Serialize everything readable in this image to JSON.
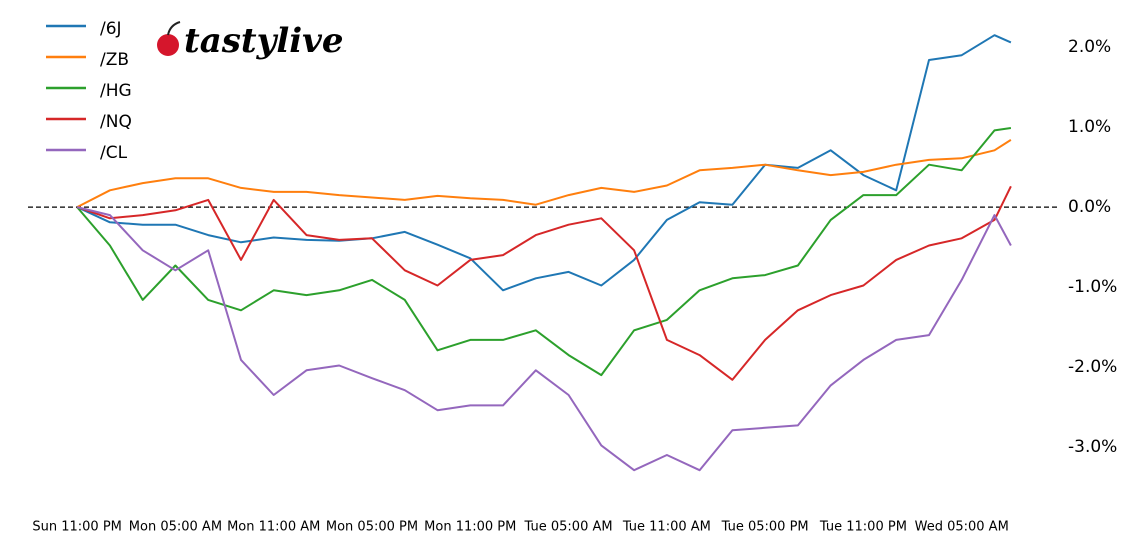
{
  "chart_data": {
    "type": "line",
    "logo": "tastylive",
    "x": [
      0,
      2,
      4,
      6,
      8,
      10,
      12,
      14,
      16,
      18,
      20,
      22,
      24,
      26,
      28,
      30,
      32,
      34,
      36,
      38,
      40,
      42,
      44,
      46,
      48,
      50,
      52,
      54,
      56,
      57
    ],
    "series": [
      {
        "name": "/6J",
        "color": "#1f77b4",
        "values": [
          0,
          -0.19,
          -0.22,
          -0.22,
          -0.35,
          -0.44,
          -0.38,
          -0.41,
          -0.42,
          -0.39,
          -0.31,
          -0.47,
          -0.64,
          -1.04,
          -0.89,
          -0.81,
          -0.98,
          -0.66,
          -0.16,
          0.06,
          0.03,
          0.53,
          0.49,
          0.71,
          0.4,
          0.21,
          1.84,
          1.9,
          2.15,
          2.06
        ]
      },
      {
        "name": "/ZB",
        "color": "#ff7f0e",
        "values": [
          0,
          0.21,
          0.3,
          0.36,
          0.36,
          0.24,
          0.19,
          0.19,
          0.15,
          0.12,
          0.09,
          0.14,
          0.11,
          0.09,
          0.03,
          0.15,
          0.24,
          0.19,
          0.27,
          0.46,
          0.49,
          0.53,
          0.46,
          0.4,
          0.44,
          0.53,
          0.59,
          0.61,
          0.71,
          0.84
        ]
      },
      {
        "name": "/HG",
        "color": "#2ca02c",
        "values": [
          0,
          -0.48,
          -1.16,
          -0.73,
          -1.16,
          -1.29,
          -1.04,
          -1.1,
          -1.04,
          -0.91,
          -1.16,
          -1.79,
          -1.66,
          -1.66,
          -1.54,
          -1.85,
          -2.1,
          -1.54,
          -1.41,
          -1.04,
          -0.89,
          -0.85,
          -0.73,
          -0.16,
          0.15,
          0.15,
          0.53,
          0.46,
          0.96,
          0.99
        ]
      },
      {
        "name": "/NQ",
        "color": "#d62728",
        "values": [
          0,
          -0.14,
          -0.1,
          -0.04,
          0.09,
          -0.66,
          0.09,
          -0.35,
          -0.41,
          -0.39,
          -0.79,
          -0.98,
          -0.66,
          -0.6,
          -0.35,
          -0.22,
          -0.14,
          -0.54,
          -1.66,
          -1.85,
          -2.16,
          -1.66,
          -1.29,
          -1.1,
          -0.98,
          -0.66,
          -0.48,
          -0.39,
          -0.16,
          0.26
        ]
      },
      {
        "name": "/CL",
        "color": "#9467bd",
        "values": [
          0,
          -0.1,
          -0.54,
          -0.79,
          -0.54,
          -1.91,
          -2.35,
          -2.04,
          -1.98,
          -2.14,
          -2.29,
          -2.54,
          -2.48,
          -2.48,
          -2.04,
          -2.35,
          -2.98,
          -3.29,
          -3.1,
          -3.29,
          -2.79,
          -2.76,
          -2.73,
          -2.23,
          -1.91,
          -1.66,
          -1.6,
          -0.91,
          -0.1,
          -0.48
        ]
      }
    ],
    "xlim": [
      -3,
      60
    ],
    "xticks": [
      {
        "value": 0,
        "label": "Sun 11:00 PM"
      },
      {
        "value": 6,
        "label": "Mon 05:00 AM"
      },
      {
        "value": 12,
        "label": "Mon 11:00 AM"
      },
      {
        "value": 18,
        "label": "Mon 05:00 PM"
      },
      {
        "value": 24,
        "label": "Mon 11:00 PM"
      },
      {
        "value": 30,
        "label": "Tue 05:00 AM"
      },
      {
        "value": 36,
        "label": "Tue 11:00 AM"
      },
      {
        "value": 42,
        "label": "Tue 05:00 PM"
      },
      {
        "value": 48,
        "label": "Tue 11:00 PM"
      },
      {
        "value": 54,
        "label": "Wed 05:00 AM"
      }
    ],
    "ylim": [
      -3.6,
      2.34
    ],
    "yticks": [
      {
        "value": 2,
        "label": "2.0%"
      },
      {
        "value": 1,
        "label": "1.0%"
      },
      {
        "value": 0,
        "label": "0.0%"
      },
      {
        "value": -1,
        "label": "-1.0%"
      },
      {
        "value": -2,
        "label": "-2.0%"
      },
      {
        "value": -3,
        "label": "-3.0%"
      }
    ],
    "reference_line": 0,
    "legend": "upper left"
  }
}
